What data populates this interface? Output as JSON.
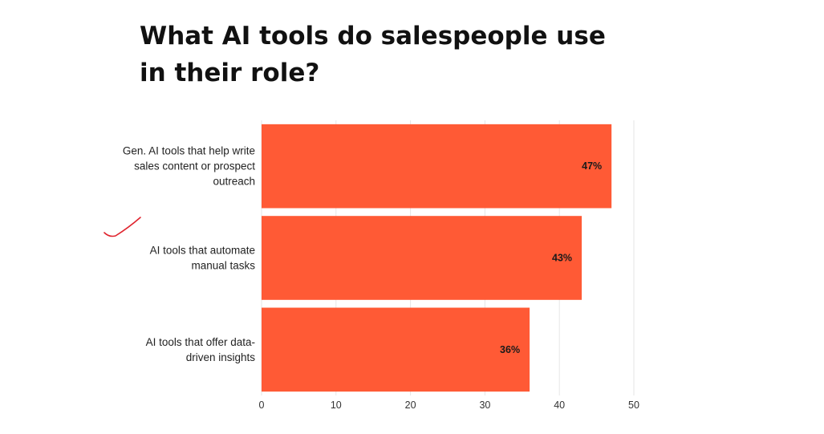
{
  "chart_data": {
    "type": "bar",
    "orientation": "horizontal",
    "title_lines": [
      "What AI tools do salespeople use",
      "in their role?"
    ],
    "categories": [
      [
        "Gen. AI tools that help write",
        "sales content or prospect",
        "outreach"
      ],
      [
        "AI tools that automate",
        "manual tasks"
      ],
      [
        "AI tools that offer data-",
        "driven insights"
      ]
    ],
    "values": [
      47,
      43,
      36
    ],
    "data_labels": [
      "47%",
      "43%",
      "36%"
    ],
    "xlim": [
      0,
      50
    ],
    "xticks": [
      0,
      10,
      20,
      30,
      40,
      50
    ],
    "xticks_labels": [
      "0",
      "10",
      "20",
      "30",
      "40",
      "50"
    ],
    "grid": true,
    "bar_color": "#ff5a35",
    "annotation": {
      "type": "checkmark",
      "color": "#e0242e"
    }
  }
}
